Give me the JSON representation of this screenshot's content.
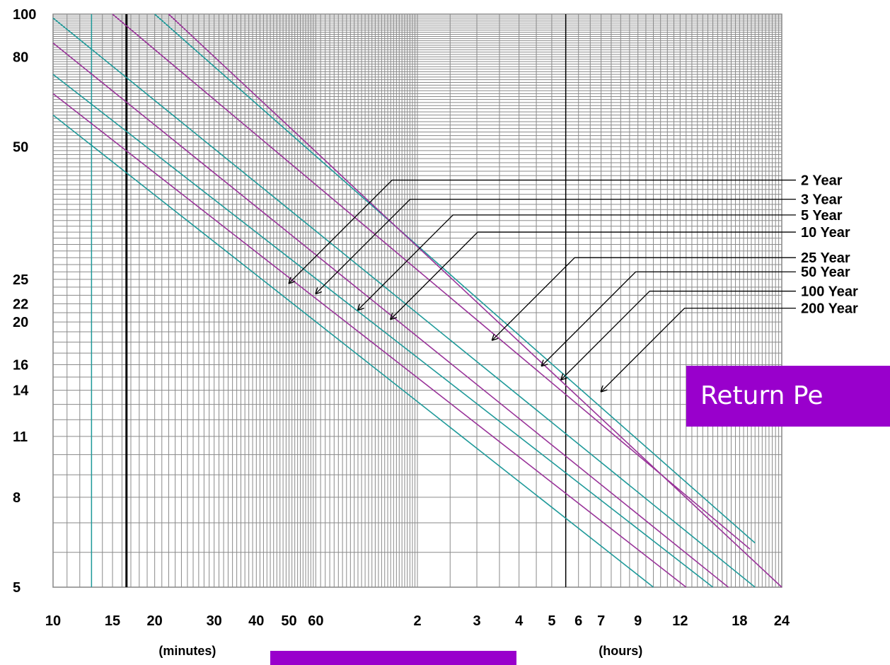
{
  "banner_text": "Return Pe",
  "chart_data": {
    "type": "line",
    "x_scale": "log",
    "y_scale": "log",
    "x_unit": "minutes",
    "xlim": [
      10,
      1440
    ],
    "ylim": [
      5,
      100
    ],
    "grid": true,
    "x_ticks": [
      {
        "label": "10",
        "value": 10
      },
      {
        "label": "15",
        "value": 15
      },
      {
        "label": "20",
        "value": 20
      },
      {
        "label": "30",
        "value": 30
      },
      {
        "label": "40",
        "value": 40
      },
      {
        "label": "50",
        "value": 50
      },
      {
        "label": "60",
        "value": 60
      },
      {
        "label": "2",
        "value": 120
      },
      {
        "label": "3",
        "value": 180
      },
      {
        "label": "4",
        "value": 240
      },
      {
        "label": "5",
        "value": 300
      },
      {
        "label": "6",
        "value": 360
      },
      {
        "label": "7",
        "value": 420
      },
      {
        "label": "9",
        "value": 540
      },
      {
        "label": "12",
        "value": 720
      },
      {
        "label": "18",
        "value": 1080
      },
      {
        "label": "24",
        "value": 1440
      }
    ],
    "x_unit_labels": [
      {
        "label": "(minutes)",
        "at": 25
      },
      {
        "label": "(hours)",
        "at": 480
      }
    ],
    "y_ticks": [
      {
        "label": "100",
        "value": 100
      },
      {
        "label": "80",
        "value": 80
      },
      {
        "label": "50",
        "value": 50
      },
      {
        "label": "25",
        "value": 25
      },
      {
        "label": "22",
        "value": 22
      },
      {
        "label": "20",
        "value": 20
      },
      {
        "label": "16",
        "value": 16
      },
      {
        "label": "14",
        "value": 14
      },
      {
        "label": "11",
        "value": 11
      },
      {
        "label": "8",
        "value": 8
      },
      {
        "label": "5",
        "value": 5
      }
    ],
    "reference_lines": [
      {
        "x": 16.5,
        "color": "#000000",
        "width": 3
      },
      {
        "x": 330,
        "color": "#000000",
        "width": 1.5
      }
    ],
    "series": [
      {
        "name": "2 Year",
        "color": "#1f9a9a",
        "points": [
          [
            10,
            59
          ],
          [
            600,
            5
          ]
        ],
        "pointer": {
          "x": 50,
          "y": 24.5
        },
        "label_y": 42
      },
      {
        "name": "3 Year",
        "color": "#993399",
        "points": [
          [
            10,
            66
          ],
          [
            750,
            5
          ]
        ],
        "pointer": {
          "x": 60,
          "y": 23.2
        },
        "label_y": 38
      },
      {
        "name": "5 Year",
        "color": "#1f9a9a",
        "points": [
          [
            10,
            73
          ],
          [
            900,
            5
          ]
        ],
        "pointer": {
          "x": 80,
          "y": 21.3
        },
        "label_y": 35
      },
      {
        "name": "10 Year",
        "color": "#993399",
        "points": [
          [
            10,
            86
          ],
          [
            1000,
            5
          ]
        ],
        "pointer": {
          "x": 100,
          "y": 20.3
        },
        "label_y": 32
      },
      {
        "name": "25 Year",
        "color": "#1f9a9a",
        "points": [
          [
            10,
            98
          ],
          [
            1200,
            5
          ]
        ],
        "pointer": {
          "x": 200,
          "y": 18.2
        },
        "label_y": 28
      },
      {
        "name": "50 Year",
        "color": "#993399",
        "points": [
          [
            15,
            100
          ],
          [
            1160,
            6.1
          ]
        ],
        "pointer": {
          "x": 280,
          "y": 15.9
        },
        "label_y": 26
      },
      {
        "name": "100 Year",
        "color": "#1f9a9a",
        "points": [
          [
            20,
            100
          ],
          [
            1200,
            6.3
          ]
        ],
        "pointer": {
          "x": 320,
          "y": 14.8
        },
        "label_y": 23.5
      },
      {
        "name": "200 Year",
        "color": "#993399",
        "points": [
          [
            22,
            100
          ],
          [
            1440,
            5
          ]
        ],
        "pointer": {
          "x": 420,
          "y": 13.9
        },
        "label_y": 21.5
      }
    ]
  }
}
